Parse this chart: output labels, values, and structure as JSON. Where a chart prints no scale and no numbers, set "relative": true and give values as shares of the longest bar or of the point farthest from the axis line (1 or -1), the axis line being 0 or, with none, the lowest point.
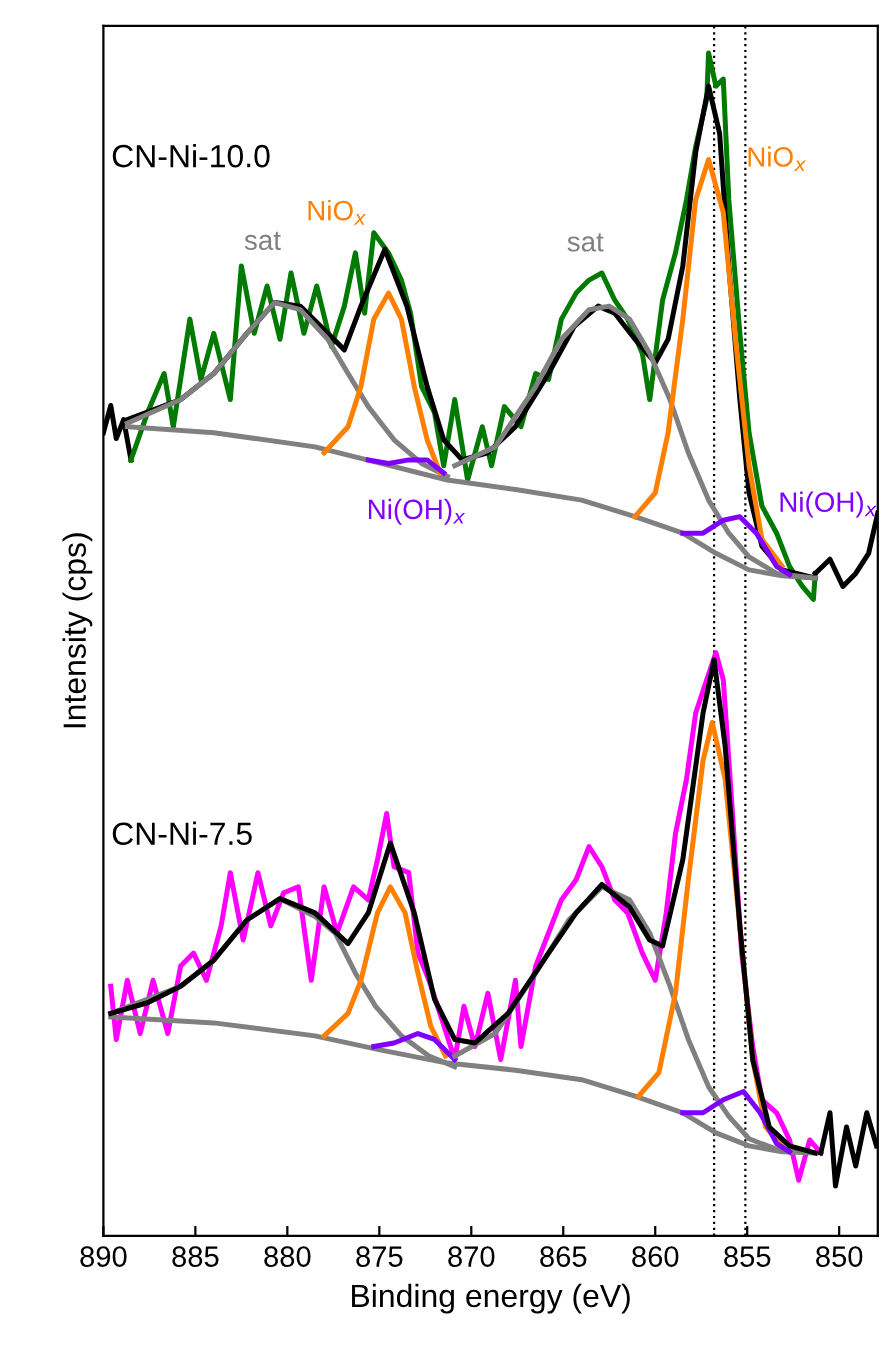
{
  "chart_data": {
    "type": "line",
    "relative": true,
    "xlabel": "Binding energy (eV)",
    "ylabel": "Intensity (cps)",
    "xlim": [
      890,
      847.9
    ],
    "xticks": [
      890,
      885,
      880,
      875,
      870,
      865,
      860,
      855,
      850
    ],
    "grid": false,
    "line_style": "solid",
    "marker": "none",
    "annotations": [
      "CN-Ni-10.0",
      "CN-Ni-7.5"
    ],
    "ref_lines": [
      {
        "axis": "x",
        "value": 856.8,
        "color": "#000000",
        "line_style": "dotted"
      },
      {
        "axis": "x",
        "value": 855.1,
        "color": "#000000",
        "line_style": "dotted"
      }
    ],
    "series": [
      {
        "color": "#000000",
        "x": [
          890.0,
          889.6,
          889.3,
          888.9,
          888.5
        ],
        "values": [
          0.679,
          0.702,
          0.674,
          0.69,
          0.656
        ]
      },
      {
        "color": "#007a00",
        "x": [
          888.5,
          887.6,
          886.7,
          886.2,
          885.3,
          884.7,
          884.0,
          883.1,
          882.5,
          881.8,
          881.1,
          880.4,
          879.8,
          879.1,
          878.4,
          877.6,
          876.9,
          876.3,
          875.8,
          875.3,
          874.5,
          873.8,
          873.3,
          872.7,
          872.0,
          871.5,
          870.9,
          870.2,
          869.4,
          868.9,
          868.2,
          867.3,
          866.5,
          865.8,
          865.1,
          864.3,
          863.6,
          862.9,
          862.2,
          861.5,
          860.7,
          860.3,
          859.6,
          858.9,
          858.3,
          857.8,
          857.2,
          857.1,
          856.7,
          856.3,
          856.0,
          855.4,
          854.9,
          854.2,
          853.4,
          852.7,
          852.0,
          851.4,
          851.3
        ],
        "values": [
          0.656,
          0.696,
          0.729,
          0.684,
          0.775,
          0.724,
          0.763,
          0.707,
          0.82,
          0.763,
          0.803,
          0.758,
          0.814,
          0.763,
          0.803,
          0.752,
          0.786,
          0.831,
          0.78,
          0.848,
          0.831,
          0.808,
          0.78,
          0.718,
          0.696,
          0.651,
          0.707,
          0.639,
          0.684,
          0.651,
          0.701,
          0.684,
          0.729,
          0.724,
          0.775,
          0.797,
          0.808,
          0.814,
          0.791,
          0.775,
          0.746,
          0.707,
          0.791,
          0.831,
          0.876,
          0.921,
          0.961,
          1.0,
          0.972,
          0.978,
          0.876,
          0.763,
          0.679,
          0.617,
          0.594,
          0.566,
          0.549,
          0.538,
          0.56
        ]
      },
      {
        "color": "#000000",
        "x": [
          851.3,
          850.5,
          849.8,
          849.1,
          848.4,
          847.9
        ],
        "values": [
          0.56,
          0.572,
          0.549,
          0.56,
          0.577,
          0.611
        ]
      },
      {
        "color": "#808080",
        "x": [
          888.7,
          884.0,
          878.5,
          874.9,
          871.3,
          867.6,
          864.0,
          861.1,
          858.5,
          856.7,
          854.9,
          853.1,
          851.3
        ],
        "values": [
          0.684,
          0.679,
          0.667,
          0.653,
          0.639,
          0.631,
          0.622,
          0.608,
          0.594,
          0.577,
          0.563,
          0.558,
          0.556
        ]
      },
      {
        "name": "sat",
        "color": "#808080",
        "x": [
          888.7,
          885.8,
          884.0,
          882.2,
          880.7,
          879.3,
          877.8,
          876.7,
          875.6,
          874.2,
          872.7,
          871.3
        ],
        "values": [
          0.687,
          0.707,
          0.729,
          0.763,
          0.789,
          0.783,
          0.758,
          0.729,
          0.701,
          0.673,
          0.653,
          0.642
        ]
      },
      {
        "name": "NiO$_{x}$",
        "color": "#ff8000",
        "x": [
          878.0,
          876.7,
          876.0,
          875.3,
          874.5,
          873.8,
          873.1,
          872.4,
          871.7
        ],
        "values": [
          0.662,
          0.684,
          0.718,
          0.775,
          0.797,
          0.775,
          0.718,
          0.673,
          0.645
        ]
      },
      {
        "name": "Ni(OH)$_{x}$",
        "color": "#8000ff",
        "x": [
          875.6,
          874.5,
          873.4,
          872.4,
          871.5
        ],
        "values": [
          0.656,
          0.653,
          0.656,
          0.656,
          0.645
        ]
      },
      {
        "name": "sat",
        "color": "#808080",
        "x": [
          870.9,
          868.7,
          866.5,
          865.1,
          863.6,
          862.5,
          861.4,
          860.3,
          859.2,
          858.2,
          857.1,
          856.0,
          854.9,
          853.4,
          851.3
        ],
        "values": [
          0.651,
          0.667,
          0.718,
          0.758,
          0.783,
          0.786,
          0.775,
          0.746,
          0.707,
          0.662,
          0.622,
          0.594,
          0.574,
          0.56,
          0.556
        ]
      },
      {
        "name": "NiO$_{x}$",
        "color": "#ff8000",
        "x": [
          861.1,
          860.0,
          859.3,
          858.5,
          857.8,
          857.1,
          856.3,
          855.6,
          854.9,
          854.2,
          853.1
        ],
        "values": [
          0.608,
          0.628,
          0.679,
          0.775,
          0.876,
          0.91,
          0.865,
          0.752,
          0.651,
          0.589,
          0.566
        ]
      },
      {
        "name": "Ni(OH)$_{x}$",
        "color": "#8000ff",
        "x": [
          858.5,
          857.4,
          856.3,
          855.4,
          854.5,
          853.4,
          852.7
        ],
        "values": [
          0.594,
          0.594,
          0.605,
          0.608,
          0.594,
          0.566,
          0.559
        ]
      },
      {
        "color": "#000000",
        "x": [
          888.7,
          885.8,
          884.0,
          882.2,
          880.7,
          879.3,
          877.8,
          876.9,
          876.0,
          874.7,
          873.5,
          872.4,
          871.5,
          870.5,
          869.1,
          867.6,
          865.8,
          864.4,
          863.1,
          862.2,
          861.1,
          860.0,
          859.3,
          858.5,
          857.8,
          857.1,
          856.5,
          856.0,
          855.4,
          854.9,
          854.2,
          853.1,
          851.3
        ],
        "values": [
          0.69,
          0.707,
          0.729,
          0.763,
          0.789,
          0.786,
          0.763,
          0.749,
          0.786,
          0.834,
          0.786,
          0.718,
          0.673,
          0.656,
          0.662,
          0.684,
          0.729,
          0.769,
          0.786,
          0.78,
          0.758,
          0.738,
          0.758,
          0.82,
          0.916,
          0.972,
          0.932,
          0.82,
          0.707,
          0.628,
          0.583,
          0.563,
          0.556
        ]
      },
      {
        "color": "#ff00ff",
        "x": [
          889.6,
          889.3,
          888.7,
          888.0,
          887.3,
          886.5,
          885.8,
          885.1,
          884.4,
          883.6,
          883.1,
          882.4,
          881.6,
          880.9,
          880.2,
          879.4,
          878.7,
          878.0,
          877.3,
          876.4,
          875.6,
          875.1,
          874.6,
          874.2,
          873.4,
          872.9,
          872.3,
          871.6,
          870.9,
          870.4,
          869.8,
          869.1,
          868.4,
          867.6,
          867.3,
          866.5,
          865.8,
          865.1,
          864.3,
          863.6,
          862.9,
          862.2,
          861.5,
          860.7,
          860.0,
          859.4,
          858.9,
          858.3,
          857.8,
          857.2,
          856.7,
          856.3,
          855.8,
          855.3,
          854.7,
          854.2,
          853.4,
          852.7,
          852.2,
          851.6,
          851.0
        ],
        "values": [
          0.211,
          0.166,
          0.216,
          0.171,
          0.216,
          0.171,
          0.228,
          0.239,
          0.216,
          0.262,
          0.307,
          0.25,
          0.307,
          0.262,
          0.29,
          0.295,
          0.216,
          0.295,
          0.256,
          0.295,
          0.284,
          0.318,
          0.357,
          0.312,
          0.307,
          0.239,
          0.216,
          0.183,
          0.149,
          0.194,
          0.16,
          0.205,
          0.149,
          0.216,
          0.16,
          0.228,
          0.256,
          0.284,
          0.301,
          0.329,
          0.312,
          0.284,
          0.273,
          0.239,
          0.216,
          0.273,
          0.34,
          0.386,
          0.442,
          0.47,
          0.493,
          0.47,
          0.357,
          0.239,
          0.16,
          0.115,
          0.104,
          0.081,
          0.047,
          0.081,
          0.07
        ]
      },
      {
        "color": "#000000",
        "x": [
          851.0,
          850.5,
          850.2,
          849.6,
          849.1,
          848.5,
          847.97
        ],
        "values": [
          0.07,
          0.104,
          0.042,
          0.092,
          0.059,
          0.104,
          0.076
        ]
      },
      {
        "color": "#808080",
        "x": [
          889.6,
          884.0,
          878.5,
          874.9,
          871.3,
          867.6,
          864.0,
          861.1,
          858.5,
          856.7,
          854.9,
          853.1,
          851.3
        ],
        "values": [
          0.185,
          0.18,
          0.169,
          0.157,
          0.146,
          0.14,
          0.132,
          0.118,
          0.104,
          0.087,
          0.076,
          0.071,
          0.07
        ]
      },
      {
        "color": "#808080",
        "x": [
          889.6,
          885.8,
          884.0,
          882.2,
          880.4,
          878.5,
          877.4,
          876.3,
          875.2,
          873.8,
          872.3,
          870.9
        ],
        "values": [
          0.188,
          0.211,
          0.233,
          0.267,
          0.285,
          0.27,
          0.256,
          0.222,
          0.194,
          0.169,
          0.152,
          0.143
        ]
      },
      {
        "color": "#ff8000",
        "x": [
          878.0,
          876.7,
          876.0,
          875.1,
          874.4,
          873.6,
          872.9,
          872.2,
          871.4
        ],
        "values": [
          0.169,
          0.188,
          0.216,
          0.273,
          0.295,
          0.273,
          0.222,
          0.177,
          0.152
        ]
      },
      {
        "color": "#8000ff",
        "x": [
          875.3,
          874.2,
          872.9,
          872.0,
          870.9
        ],
        "values": [
          0.16,
          0.163,
          0.171,
          0.166,
          0.149
        ]
      },
      {
        "color": "#808080",
        "x": [
          870.9,
          868.7,
          866.5,
          864.7,
          862.9,
          861.4,
          860.3,
          859.2,
          858.2,
          857.1,
          856.0,
          854.9,
          853.4,
          851.3
        ],
        "values": [
          0.152,
          0.171,
          0.222,
          0.267,
          0.295,
          0.284,
          0.256,
          0.211,
          0.166,
          0.126,
          0.101,
          0.082,
          0.073,
          0.07
        ]
      },
      {
        "color": "#ff8000",
        "x": [
          860.9,
          859.8,
          858.9,
          858.2,
          857.4,
          856.9,
          856.2,
          855.4,
          854.7,
          854.0,
          853.1
        ],
        "values": [
          0.118,
          0.138,
          0.205,
          0.301,
          0.402,
          0.434,
          0.386,
          0.262,
          0.149,
          0.092,
          0.076
        ]
      },
      {
        "color": "#8000ff",
        "x": [
          858.5,
          857.4,
          856.3,
          855.2,
          854.3,
          853.4,
          852.7
        ],
        "values": [
          0.104,
          0.104,
          0.115,
          0.122,
          0.104,
          0.078,
          0.071
        ]
      },
      {
        "color": "#000000",
        "x": [
          889.6,
          887.6,
          885.8,
          884.0,
          882.2,
          880.4,
          878.5,
          876.7,
          875.6,
          874.4,
          873.1,
          872.0,
          870.9,
          869.8,
          868.0,
          865.8,
          864.3,
          862.9,
          861.4,
          860.3,
          859.6,
          858.5,
          857.4,
          856.8,
          856.2,
          855.4,
          854.7,
          853.8,
          852.7,
          851.3
        ],
        "values": [
          0.188,
          0.197,
          0.211,
          0.233,
          0.267,
          0.285,
          0.273,
          0.247,
          0.273,
          0.332,
          0.273,
          0.2,
          0.166,
          0.163,
          0.188,
          0.239,
          0.273,
          0.297,
          0.278,
          0.25,
          0.245,
          0.318,
          0.442,
          0.487,
          0.414,
          0.262,
          0.149,
          0.092,
          0.076,
          0.07
        ]
      }
    ]
  }
}
